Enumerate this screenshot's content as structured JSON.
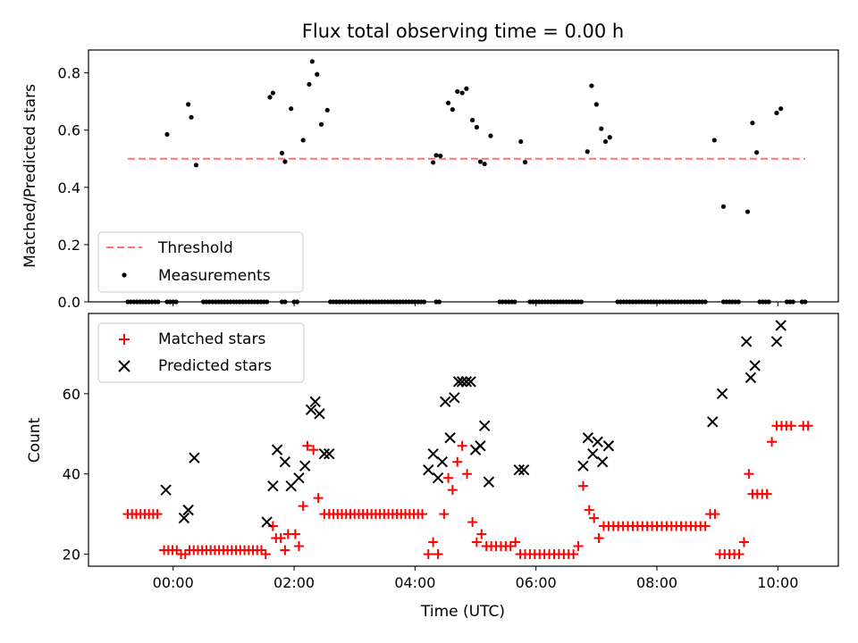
{
  "title": "Flux total observing time = 0.00 h",
  "colors": {
    "threshold": "#ff7070",
    "matched": "#ff0000",
    "predicted": "#000000",
    "measurement": "#000000"
  },
  "chart_data": [
    {
      "type": "scatter",
      "ylabel": "Matched/Predicted stars",
      "xlim": [
        -1.4,
        11.0
      ],
      "ylim": [
        0.0,
        0.88
      ],
      "yticks": [
        "0.0",
        "0.2",
        "0.4",
        "0.6",
        "0.8"
      ],
      "threshold": {
        "name": "Threshold",
        "y": 0.5,
        "x_range": [
          -0.75,
          10.45
        ]
      },
      "series": [
        {
          "name": "Measurements",
          "x": [
            -0.75,
            -0.7,
            -0.65,
            -0.6,
            -0.55,
            -0.5,
            -0.45,
            -0.4,
            -0.35,
            -0.3,
            -0.25,
            -0.1,
            -0.05,
            0.0,
            0.05,
            0.5,
            0.55,
            0.6,
            0.65,
            0.7,
            0.75,
            0.8,
            0.85,
            0.9,
            0.95,
            1.0,
            1.05,
            1.1,
            1.15,
            1.2,
            1.25,
            1.3,
            1.35,
            1.4,
            1.45,
            1.5,
            1.55,
            1.8,
            1.85,
            2.0,
            2.05,
            2.6,
            2.65,
            2.7,
            2.75,
            2.8,
            2.85,
            2.9,
            2.95,
            3.0,
            3.05,
            3.1,
            3.15,
            3.2,
            3.25,
            3.3,
            3.35,
            3.4,
            3.45,
            3.5,
            3.55,
            3.6,
            3.65,
            3.7,
            3.75,
            3.8,
            3.85,
            3.9,
            3.95,
            4.0,
            4.05,
            4.1,
            4.15,
            4.35,
            4.4,
            5.4,
            5.45,
            5.5,
            5.55,
            5.6,
            5.65,
            5.9,
            5.95,
            6.0,
            6.05,
            6.1,
            6.15,
            6.2,
            6.25,
            6.3,
            6.35,
            6.4,
            6.45,
            6.5,
            6.55,
            6.6,
            6.65,
            6.7,
            6.75,
            7.35,
            7.4,
            7.45,
            7.5,
            7.55,
            7.6,
            7.65,
            7.7,
            7.75,
            7.8,
            7.85,
            7.9,
            7.95,
            8.0,
            8.05,
            8.1,
            8.15,
            8.2,
            8.25,
            8.3,
            8.35,
            8.4,
            8.45,
            8.5,
            8.55,
            8.6,
            8.65,
            8.7,
            8.75,
            8.8,
            9.1,
            9.15,
            9.2,
            9.25,
            9.3,
            9.35,
            9.7,
            9.75,
            9.8,
            9.85,
            10.15,
            10.2,
            10.25,
            10.4,
            10.45,
            -0.1,
            0.25,
            0.3,
            0.38,
            1.6,
            1.65,
            1.8,
            1.85,
            1.95,
            2.15,
            2.25,
            2.3,
            2.38,
            2.45,
            2.55,
            4.3,
            4.35,
            4.42,
            4.55,
            4.62,
            4.7,
            4.78,
            4.85,
            4.95,
            5.02,
            5.08,
            5.15,
            5.25,
            5.75,
            5.82,
            6.85,
            6.92,
            7.0,
            7.08,
            7.15,
            7.22,
            8.95,
            9.1,
            9.5,
            9.58,
            9.65,
            9.98,
            10.05
          ],
          "y": [
            0,
            0,
            0,
            0,
            0,
            0,
            0,
            0,
            0,
            0,
            0,
            0,
            0,
            0,
            0,
            0,
            0,
            0,
            0,
            0,
            0,
            0,
            0,
            0,
            0,
            0,
            0,
            0,
            0,
            0,
            0,
            0,
            0,
            0,
            0,
            0,
            0,
            0,
            0,
            0,
            0,
            0,
            0,
            0,
            0,
            0,
            0,
            0,
            0,
            0,
            0,
            0,
            0,
            0,
            0,
            0,
            0,
            0,
            0,
            0,
            0,
            0,
            0,
            0,
            0,
            0,
            0,
            0,
            0,
            0,
            0,
            0,
            0,
            0,
            0,
            0,
            0,
            0,
            0,
            0,
            0,
            0,
            0,
            0,
            0,
            0,
            0,
            0,
            0,
            0,
            0,
            0,
            0,
            0,
            0,
            0,
            0,
            0,
            0,
            0,
            0,
            0,
            0,
            0,
            0,
            0,
            0,
            0,
            0,
            0,
            0,
            0,
            0,
            0,
            0,
            0,
            0,
            0,
            0,
            0,
            0,
            0,
            0,
            0,
            0,
            0,
            0,
            0,
            0,
            0,
            0,
            0,
            0,
            0,
            0,
            0,
            0,
            0,
            0,
            0,
            0,
            0,
            0,
            0,
            0.585,
            0.69,
            0.645,
            0.478,
            0.715,
            0.73,
            0.52,
            0.49,
            0.675,
            0.565,
            0.76,
            0.84,
            0.795,
            0.62,
            0.67,
            0.487,
            0.512,
            0.51,
            0.695,
            0.672,
            0.735,
            0.73,
            0.745,
            0.635,
            0.61,
            0.49,
            0.482,
            0.58,
            0.56,
            0.488,
            0.525,
            0.755,
            0.69,
            0.605,
            0.56,
            0.575,
            0.565,
            0.333,
            0.315,
            0.625,
            0.522,
            0.66,
            0.675
          ]
        }
      ]
    },
    {
      "type": "scatter",
      "ylabel": "Count",
      "xlabel": "Time (UTC)",
      "xlim": [
        -1.4,
        11.0
      ],
      "ylim": [
        17,
        80
      ],
      "yticks": [
        "20",
        "40",
        "60"
      ],
      "xticks": [
        {
          "x": 0,
          "label": "00:00"
        },
        {
          "x": 2,
          "label": "02:00"
        },
        {
          "x": 4,
          "label": "04:00"
        },
        {
          "x": 6,
          "label": "06:00"
        },
        {
          "x": 8,
          "label": "08:00"
        },
        {
          "x": 10,
          "label": "10:00"
        }
      ],
      "series": [
        {
          "name": "Matched stars",
          "x": [
            -0.75,
            -0.68,
            -0.61,
            -0.54,
            -0.47,
            -0.4,
            -0.33,
            -0.26,
            -0.15,
            -0.08,
            -0.01,
            0.06,
            0.13,
            0.2,
            0.27,
            0.34,
            0.41,
            0.48,
            0.55,
            0.62,
            0.69,
            0.76,
            0.83,
            0.9,
            0.97,
            1.04,
            1.11,
            1.18,
            1.25,
            1.32,
            1.39,
            1.46,
            1.53,
            1.65,
            1.7,
            1.78,
            1.85,
            1.9,
            2.02,
            2.08,
            2.15,
            2.22,
            2.32,
            2.4,
            2.5,
            2.58,
            2.65,
            2.72,
            2.79,
            2.86,
            2.93,
            3.0,
            3.07,
            3.14,
            3.21,
            3.28,
            3.35,
            3.42,
            3.49,
            3.56,
            3.63,
            3.7,
            3.77,
            3.84,
            3.91,
            3.98,
            4.05,
            4.12,
            4.22,
            4.3,
            4.38,
            4.48,
            4.55,
            4.62,
            4.7,
            4.78,
            4.86,
            4.95,
            5.02,
            5.1,
            5.18,
            5.26,
            5.34,
            5.42,
            5.5,
            5.58,
            5.66,
            5.74,
            5.82,
            5.9,
            5.98,
            6.06,
            6.14,
            6.22,
            6.3,
            6.38,
            6.46,
            6.54,
            6.62,
            6.7,
            6.78,
            6.88,
            6.96,
            7.04,
            7.12,
            7.2,
            7.28,
            7.36,
            7.44,
            7.52,
            7.6,
            7.68,
            7.76,
            7.84,
            7.92,
            8.0,
            8.08,
            8.16,
            8.24,
            8.32,
            8.4,
            8.48,
            8.56,
            8.64,
            8.72,
            8.8,
            8.88,
            8.96,
            9.04,
            9.12,
            9.2,
            9.28,
            9.36,
            9.44,
            9.52,
            9.58,
            9.66,
            9.74,
            9.82,
            9.9,
            9.98,
            10.06,
            10.14,
            10.22,
            10.42,
            10.5
          ],
          "y": [
            30,
            30,
            30,
            30,
            30,
            30,
            30,
            30,
            21,
            21,
            21,
            21,
            20,
            20,
            21,
            21,
            21,
            21,
            21,
            21,
            21,
            21,
            21,
            21,
            21,
            21,
            21,
            21,
            21,
            21,
            21,
            21,
            20,
            27,
            24,
            24,
            21,
            25,
            25,
            22,
            32,
            47,
            46,
            34,
            30,
            30,
            30,
            30,
            30,
            30,
            30,
            30,
            30,
            30,
            30,
            30,
            30,
            30,
            30,
            30,
            30,
            30,
            30,
            30,
            30,
            30,
            30,
            30,
            20,
            23,
            20,
            30,
            39,
            36,
            43,
            47,
            40,
            28,
            23,
            25,
            22,
            22,
            22,
            22,
            22,
            22,
            23,
            20,
            20,
            20,
            20,
            20,
            20,
            20,
            20,
            20,
            20,
            20,
            20,
            22,
            37,
            31,
            29,
            24,
            27,
            27,
            27,
            27,
            27,
            27,
            27,
            27,
            27,
            27,
            27,
            27,
            27,
            27,
            27,
            27,
            27,
            27,
            27,
            27,
            27,
            27,
            30,
            30,
            20,
            20,
            20,
            20,
            20,
            23,
            40,
            35,
            35,
            35,
            35,
            48,
            52,
            52,
            52,
            52,
            52,
            52
          ]
        },
        {
          "name": "Predicted stars",
          "x": [
            -0.12,
            0.18,
            0.25,
            0.35,
            1.55,
            1.65,
            1.72,
            1.85,
            1.95,
            2.08,
            2.18,
            2.28,
            2.35,
            2.42,
            2.5,
            2.58,
            4.22,
            4.3,
            4.38,
            4.45,
            4.5,
            4.58,
            4.65,
            4.72,
            4.78,
            4.85,
            4.92,
            5.0,
            5.08,
            5.15,
            5.22,
            5.72,
            5.8,
            6.78,
            6.86,
            6.94,
            7.02,
            7.1,
            7.2,
            8.92,
            9.08,
            9.48,
            9.55,
            9.62,
            9.98,
            10.05
          ],
          "y": [
            36,
            29,
            31,
            44,
            28,
            37,
            46,
            43,
            37,
            39,
            42,
            56,
            58,
            55,
            45,
            45,
            41,
            45,
            39,
            43,
            58,
            49,
            59,
            63,
            63,
            63,
            63,
            46,
            47,
            52,
            38,
            41,
            41,
            42,
            49,
            45,
            48,
            43,
            47,
            53,
            60,
            73,
            64,
            67,
            73,
            77
          ]
        }
      ]
    }
  ]
}
